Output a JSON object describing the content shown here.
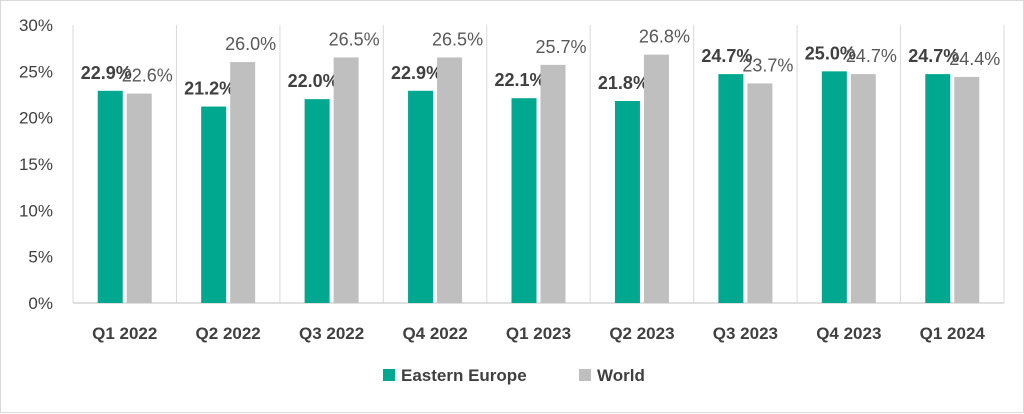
{
  "chart_data": {
    "type": "bar",
    "title": "",
    "xlabel": "",
    "ylabel": "",
    "categories": [
      "Q1 2022",
      "Q2 2022",
      "Q3 2022",
      "Q4 2022",
      "Q1 2023",
      "Q2 2023",
      "Q3 2023",
      "Q4 2023",
      "Q1 2024"
    ],
    "series": [
      {
        "name": "Eastern Europe",
        "color": "#00a88f",
        "values": [
          22.9,
          21.2,
          22.0,
          22.9,
          22.1,
          21.8,
          24.7,
          25.0,
          24.7
        ],
        "labels": [
          "22.9%",
          "21.2%",
          "22.0%",
          "22.9%",
          "22.1%",
          "21.8%",
          "24.7%",
          "25.0%",
          "24.7%"
        ]
      },
      {
        "name": "World",
        "color": "#bfbfbf",
        "values": [
          22.6,
          26.0,
          26.5,
          26.5,
          25.7,
          26.8,
          23.7,
          24.7,
          24.4
        ],
        "labels": [
          "22.6%",
          "26.0%",
          "26.5%",
          "26.5%",
          "25.7%",
          "26.8%",
          "23.7%",
          "24.7%",
          "24.4%"
        ]
      }
    ],
    "yticks": [
      0,
      5,
      10,
      15,
      20,
      25,
      30
    ],
    "ytick_labels": [
      "0%",
      "5%",
      "10%",
      "15%",
      "20%",
      "25%",
      "30%"
    ],
    "ylim": [
      0,
      30
    ],
    "grid": "vertical category separators",
    "legend": "bottom-center"
  }
}
